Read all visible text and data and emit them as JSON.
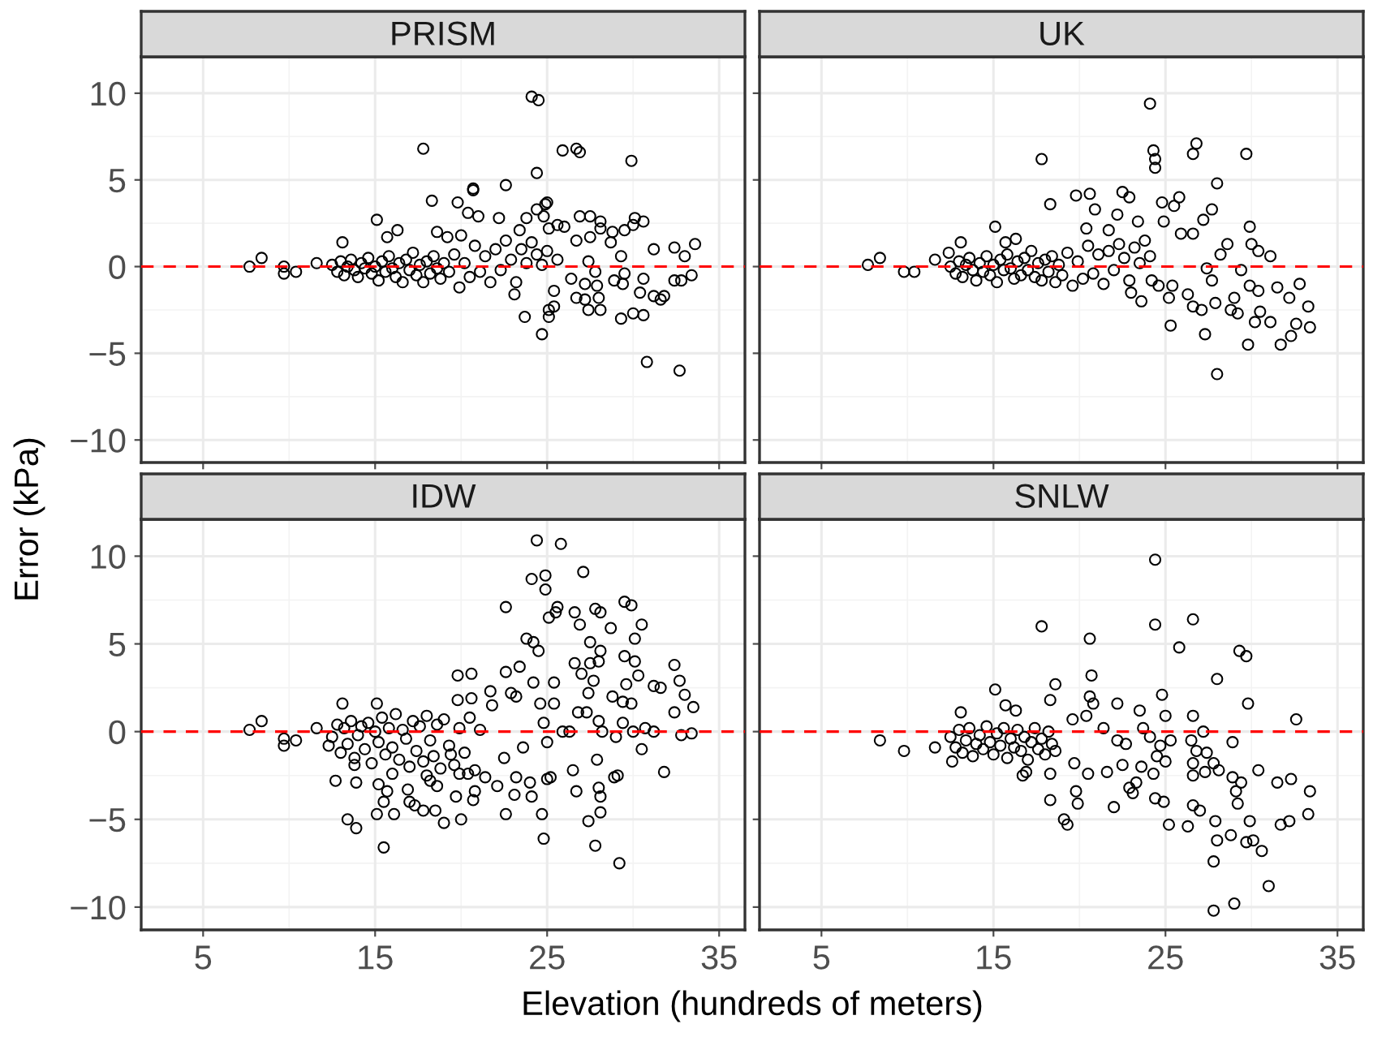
{
  "chart_data": [
    {
      "type": "scatter",
      "title": "PRISM",
      "ylabel": "Error (kPa)",
      "xlim": [
        1.4,
        36.5
      ],
      "ylim": [
        -11.3,
        12.1
      ],
      "xticks": [
        5,
        15,
        25,
        35
      ],
      "yticks": [
        -10,
        -5,
        0,
        5,
        10
      ],
      "grid": true,
      "marker": "circle",
      "tick_labels": "y",
      "ref_lines": [
        {
          "axis": "y",
          "value": 0,
          "color": "#ff0000",
          "line_style": "dashed"
        }
      ],
      "series": [
        {
          "color": "#000000",
          "x": [
            7.7,
            8.4,
            9.7,
            9.7,
            10.4,
            11.6,
            13.1,
            15.1,
            15.7,
            16.3,
            17.8,
            18.3,
            18.6,
            19.2,
            19.8,
            20.0,
            20.4,
            20.7,
            20.7,
            21.0,
            22.2,
            22.6,
            23.4,
            23.7,
            23.8,
            23.1,
            24.1,
            24.5,
            24.4,
            24.4,
            24.8,
            24.9,
            25.0,
            24.7,
            25.1,
            25.1,
            25.4,
            25.4,
            25.1,
            25.6,
            25.6,
            25.9,
            26.0,
            26.4,
            26.7,
            26.9,
            26.7,
            26.7,
            26.9,
            27.2,
            27.2,
            27.4,
            27.5,
            27.5,
            27.4,
            27.8,
            27.9,
            28.0,
            28.1,
            28.1,
            28.1,
            28.7,
            28.8,
            28.9,
            29.3,
            29.3,
            29.5,
            29.4,
            29.5,
            29.9,
            30.0,
            30.1,
            30.0,
            30.4,
            30.6,
            30.6,
            30.6,
            30.8,
            31.2,
            31.2,
            31.6,
            31.8,
            32.4,
            32.4,
            32.7,
            32.8,
            33.0,
            33.4,
            33.6,
            12.5,
            12.8,
            13.0,
            13.2,
            13.4,
            13.6,
            13.8,
            14.0,
            14.2,
            14.4,
            14.6,
            14.8,
            15.0,
            15.2,
            15.4,
            15.6,
            15.8,
            16.0,
            16.2,
            16.4,
            16.6,
            16.8,
            17.0,
            17.2,
            17.4,
            17.6,
            17.8,
            18.0,
            18.2,
            18.4,
            18.6,
            18.8,
            19.0,
            19.3,
            19.6,
            19.9,
            20.2,
            20.5,
            20.8,
            21.1,
            21.4,
            21.7,
            22.0,
            22.3,
            22.6,
            22.9,
            23.2,
            23.5,
            23.8,
            24.1,
            24.4,
            24.7,
            25.0
          ],
          "values": [
            0,
            0.5,
            0,
            -0.4,
            -0.3,
            0.2,
            1.4,
            2.7,
            1.7,
            2.1,
            6.8,
            3.8,
            2.0,
            1.7,
            3.7,
            1.8,
            3.1,
            4.5,
            4.4,
            2.9,
            2.8,
            4.7,
            2.1,
            -2.9,
            2.8,
            -1.6,
            9.8,
            9.6,
            5.4,
            3.3,
            2.9,
            3.6,
            3.7,
            -3.9,
            -2.9,
            -2.5,
            -1.4,
            -2.3,
            2.2,
            0.4,
            2.4,
            6.7,
            2.3,
            -0.7,
            6.8,
            6.6,
            1.5,
            -1.8,
            2.9,
            -1.0,
            -1.9,
            -2.5,
            2.9,
            1.7,
            0.3,
            -0.3,
            -1.1,
            -1.8,
            -2.5,
            2.6,
            2.2,
            1.4,
            2.0,
            -0.8,
            0.6,
            -3.0,
            -0.4,
            -1.0,
            2.1,
            6.1,
            2.4,
            2.8,
            -2.7,
            -1.5,
            2.6,
            -0.7,
            -2.8,
            -5.5,
            1.0,
            -1.7,
            -1.9,
            -1.7,
            1.1,
            -0.8,
            -6.0,
            -0.8,
            0.6,
            -0.5,
            1.3,
            0.1,
            -0.3,
            0.3,
            -0.5,
            0.0,
            0.4,
            -0.2,
            -0.6,
            0.2,
            -0.1,
            0.5,
            -0.4,
            0.0,
            -0.8,
            0.3,
            -0.3,
            0.6,
            -0.1,
            -0.6,
            0.2,
            -0.9,
            0.4,
            -0.2,
            0.8,
            -0.5,
            0.1,
            -0.9,
            0.3,
            -0.4,
            0.6,
            -0.1,
            -0.7,
            0.2,
            -0.3,
            0.7,
            -1.2,
            0.2,
            -0.6,
            1.2,
            -0.3,
            0.6,
            -0.9,
            1.0,
            -0.2,
            1.5,
            0.4,
            -0.9,
            1.0,
            0.2,
            1.4,
            0.7,
            0.1,
            0.9
          ]
        }
      ]
    },
    {
      "type": "scatter",
      "title": "UK",
      "xlim": [
        1.4,
        36.5
      ],
      "ylim": [
        -11.3,
        12.1
      ],
      "xticks": [
        5,
        15,
        25,
        35
      ],
      "yticks": [
        -10,
        -5,
        0,
        5,
        10
      ],
      "grid": true,
      "marker": "circle",
      "tick_labels": false,
      "ref_lines": [
        {
          "axis": "y",
          "value": 0,
          "color": "#ff0000",
          "line_style": "dashed"
        }
      ],
      "series": [
        {
          "color": "#000000",
          "x": [
            7.7,
            8.4,
            9.8,
            10.4,
            11.6,
            12.4,
            13.1,
            15.1,
            15.7,
            16.3,
            17.8,
            18.3,
            19.8,
            20.6,
            20.9,
            20.4,
            21.7,
            22.2,
            22.5,
            22.9,
            23.0,
            23.4,
            23.6,
            24.1,
            24.3,
            24.4,
            24.4,
            24.2,
            24.6,
            24.8,
            24.9,
            25.3,
            25.2,
            25.4,
            25.5,
            25.8,
            25.9,
            26.3,
            26.6,
            26.6,
            26.6,
            26.8,
            27.1,
            27.2,
            27.3,
            27.4,
            27.7,
            27.7,
            27.9,
            28.0,
            28.0,
            28.2,
            28.6,
            28.8,
            29.0,
            29.2,
            29.4,
            29.7,
            29.9,
            29.8,
            29.9,
            30.0,
            30.2,
            30.4,
            30.4,
            30.5,
            31.1,
            31.1,
            31.5,
            31.7,
            32.2,
            32.3,
            32.6,
            32.8,
            33.3,
            33.4,
            12.5,
            12.8,
            13.0,
            13.2,
            13.4,
            13.6,
            13.8,
            14.0,
            14.2,
            14.4,
            14.6,
            14.8,
            15.0,
            15.2,
            15.4,
            15.6,
            15.8,
            16.0,
            16.2,
            16.4,
            16.6,
            16.8,
            17.0,
            17.2,
            17.4,
            17.6,
            17.8,
            18.0,
            18.2,
            18.4,
            18.6,
            18.8,
            19.0,
            19.3,
            19.6,
            19.9,
            20.2,
            20.5,
            20.8,
            21.1,
            21.4,
            21.7,
            22.0,
            22.3,
            22.6,
            22.9,
            23.2,
            23.5,
            23.8,
            24.1
          ],
          "values": [
            0.1,
            0.5,
            -0.3,
            -0.3,
            0.4,
            0.8,
            1.4,
            2.3,
            1.4,
            1.6,
            6.2,
            3.6,
            4.1,
            4.2,
            3.3,
            2.2,
            2.1,
            3.0,
            4.3,
            4.0,
            -1.5,
            2.6,
            -2.0,
            9.4,
            6.7,
            6.2,
            5.7,
            -0.8,
            -1.1,
            3.7,
            2.6,
            -3.4,
            -1.8,
            -1.1,
            3.5,
            4.0,
            1.9,
            -1.6,
            1.9,
            -2.3,
            6.5,
            7.1,
            -2.5,
            2.7,
            -3.9,
            -0.1,
            3.3,
            -0.8,
            -2.1,
            4.8,
            -6.2,
            0.7,
            1.3,
            -2.5,
            -1.8,
            -2.7,
            -0.2,
            6.5,
            2.3,
            -4.5,
            -1.1,
            1.3,
            -3.2,
            0.9,
            -1.4,
            -2.6,
            0.6,
            -3.2,
            -1.2,
            -4.5,
            -1.8,
            -4.0,
            -3.3,
            -1.0,
            -2.3,
            -3.5,
            0.0,
            -0.4,
            0.3,
            -0.6,
            0.1,
            0.5,
            -0.2,
            -0.8,
            0.2,
            -0.3,
            0.6,
            -0.5,
            0.1,
            -0.9,
            0.4,
            -0.2,
            0.7,
            -0.1,
            -0.7,
            0.3,
            -0.5,
            0.5,
            -0.2,
            0.9,
            -0.6,
            0.2,
            -0.8,
            0.4,
            -0.3,
            0.6,
            -0.9,
            0.1,
            -0.5,
            0.8,
            -1.1,
            0.3,
            -0.7,
            1.2,
            -0.4,
            0.7,
            -1.0,
            0.9,
            -0.2,
            1.3,
            0.5,
            -0.8,
            1.1,
            0.2,
            1.5,
            0.6
          ]
        }
      ]
    },
    {
      "type": "scatter",
      "title": "IDW",
      "xlabel": "Elevation (hundreds of meters)",
      "xlim": [
        1.4,
        36.5
      ],
      "ylim": [
        -11.3,
        12.1
      ],
      "xticks": [
        5,
        15,
        25,
        35
      ],
      "yticks": [
        -10,
        -5,
        0,
        5,
        10
      ],
      "grid": true,
      "marker": "circle",
      "ref_lines": [
        {
          "axis": "y",
          "value": 0,
          "color": "#ff0000",
          "line_style": "dashed"
        }
      ],
      "series": [
        {
          "color": "#000000",
          "x": [
            7.7,
            8.4,
            9.7,
            9.7,
            10.4,
            11.6,
            12.3,
            12.7,
            13.1,
            13.4,
            13.9,
            13.9,
            13.8,
            15.1,
            15.1,
            15.2,
            15.5,
            15.5,
            15.7,
            16.0,
            16.1,
            16.9,
            17.0,
            17.3,
            17.8,
            18.0,
            18.2,
            18.5,
            18.6,
            19.0,
            19.4,
            19.7,
            19.8,
            19.8,
            19.9,
            20.0,
            20.4,
            20.6,
            20.6,
            20.7,
            20.8,
            21.4,
            21.7,
            21.8,
            22.1,
            22.6,
            22.6,
            22.6,
            22.5,
            22.9,
            23.1,
            23.2,
            23.4,
            23.2,
            23.6,
            23.8,
            24.0,
            24.1,
            24.1,
            24.2,
            24.2,
            24.4,
            24.5,
            24.6,
            24.7,
            24.8,
            24.9,
            24.9,
            24.8,
            25.0,
            25.1,
            25.0,
            25.2,
            25.4,
            25.4,
            25.5,
            25.6,
            25.8,
            25.9,
            26.3,
            26.5,
            26.6,
            26.6,
            26.7,
            26.8,
            26.9,
            27.0,
            27.1,
            27.3,
            27.4,
            27.4,
            27.5,
            27.5,
            27.7,
            27.8,
            27.8,
            27.9,
            28.0,
            28.0,
            28.0,
            28.1,
            28.1,
            28.1,
            28.1,
            28.2,
            28.7,
            28.8,
            28.9,
            29.0,
            29.1,
            29.2,
            29.4,
            29.4,
            29.5,
            29.5,
            29.6,
            29.9,
            29.9,
            30.0,
            30.1,
            30.1,
            30.3,
            30.5,
            30.5,
            30.7,
            31.2,
            31.2,
            31.6,
            31.8,
            32.4,
            32.4,
            32.7,
            32.8,
            33.0,
            33.4,
            33.5,
            12.5,
            12.8,
            13.0,
            13.2,
            13.4,
            13.6,
            13.8,
            14.0,
            14.2,
            14.4,
            14.6,
            14.8,
            15.0,
            15.2,
            15.4,
            15.6,
            15.8,
            16.0,
            16.2,
            16.4,
            16.6,
            16.8,
            17.0,
            17.2,
            17.4,
            17.6,
            17.8,
            18.0,
            18.2,
            18.4,
            18.6,
            18.8,
            19.0,
            19.3,
            19.6,
            19.9,
            20.2,
            20.5,
            20.8,
            21.1
          ],
          "values": [
            0.1,
            0.6,
            -0.4,
            -0.8,
            -0.5,
            0.2,
            -0.8,
            -2.8,
            1.6,
            -5.0,
            -5.5,
            -2.9,
            -1.9,
            1.6,
            -4.7,
            -3.0,
            -4.0,
            -6.6,
            -3.4,
            -2.4,
            -4.7,
            -3.3,
            -4.0,
            -4.2,
            -4.5,
            -2.5,
            -2.8,
            -4.5,
            -3.1,
            -5.2,
            -1.3,
            -3.7,
            3.2,
            1.8,
            -2.4,
            -5.0,
            -2.4,
            3.3,
            1.9,
            -3.9,
            -3.4,
            -2.6,
            2.3,
            1.5,
            -3.1,
            7.1,
            3.4,
            -4.7,
            -1.5,
            2.2,
            -3.6,
            2.0,
            3.7,
            -2.6,
            -0.9,
            5.3,
            -2.9,
            -3.7,
            8.7,
            2.8,
            5.1,
            10.9,
            4.6,
            1.6,
            -4.7,
            -6.1,
            8.1,
            8.9,
            0.5,
            -0.6,
            6.5,
            -2.7,
            -2.6,
            2.8,
            1.6,
            6.8,
            7.1,
            10.7,
            0,
            0,
            -2.2,
            3.9,
            6.8,
            -3.4,
            1.1,
            6.1,
            3.3,
            9.1,
            1.1,
            -5.1,
            2.2,
            5.1,
            3.9,
            2.9,
            -6.5,
            7.0,
            -1.6,
            0.6,
            4.0,
            -3.2,
            4.6,
            6.8,
            -3.7,
            -4.6,
            0,
            5.9,
            2.0,
            -2.6,
            -0.3,
            -2.5,
            -7.5,
            0.5,
            1.7,
            4.3,
            7.4,
            2.7,
            7.2,
            1.6,
            0,
            4.0,
            5.3,
            3.2,
            6.1,
            -1.0,
            0.2,
            2.6,
            0,
            2.5,
            -2.3,
            1.1,
            3.8,
            2.9,
            -0.2,
            2.1,
            -0.1,
            1.4,
            -0.3,
            0.4,
            -1.2,
            0.2,
            -0.7,
            0.6,
            -1.5,
            -0.2,
            0.3,
            -1.0,
            0.5,
            -1.8,
            0.0,
            -0.6,
            0.8,
            -1.3,
            0.2,
            -0.9,
            1.0,
            -1.6,
            0.1,
            -0.4,
            -2.0,
            0.6,
            -1.1,
            0.3,
            -1.7,
            0.9,
            -0.5,
            -1.4,
            0.4,
            -2.1,
            0.7,
            -0.8,
            -1.9,
            0.2,
            -1.2,
            0.8,
            -2.2,
            0.1
          ]
        }
      ]
    },
    {
      "type": "scatter",
      "title": "SNLW",
      "xlim": [
        1.4,
        36.5
      ],
      "ylim": [
        -11.3,
        12.1
      ],
      "xticks": [
        5,
        15,
        25,
        35
      ],
      "yticks": [
        -10,
        -5,
        0,
        5,
        10
      ],
      "grid": true,
      "marker": "circle",
      "tick_labels": "x",
      "ref_lines": [
        {
          "axis": "y",
          "value": 0,
          "color": "#ff0000",
          "line_style": "dashed"
        }
      ],
      "series": [
        {
          "color": "#000000",
          "x": [
            8.4,
            9.8,
            11.6,
            12.6,
            13.1,
            15.1,
            15.7,
            16.3,
            16.7,
            16.9,
            17.8,
            18.3,
            18.3,
            18.3,
            18.6,
            19.1,
            19.3,
            19.6,
            19.8,
            19.9,
            19.7,
            20.5,
            20.6,
            20.6,
            20.7,
            20.8,
            20.4,
            21.4,
            21.6,
            22.0,
            22.2,
            22.2,
            22.5,
            22.7,
            22.9,
            23.1,
            23.3,
            23.5,
            23.7,
            23.6,
            24.1,
            24.3,
            24.4,
            24.4,
            24.4,
            24.5,
            24.7,
            24.8,
            24.9,
            25.0,
            25.0,
            25.2,
            25.3,
            25.8,
            26.3,
            26.5,
            26.6,
            26.6,
            26.6,
            26.6,
            26.6,
            26.8,
            27.0,
            27.2,
            27.3,
            27.4,
            27.8,
            27.8,
            27.9,
            28.0,
            28.0,
            28.1,
            28.8,
            28.9,
            28.9,
            29.0,
            29.1,
            29.2,
            29.3,
            29.4,
            29.7,
            29.8,
            29.7,
            29.9,
            30.1,
            30.4,
            30.6,
            31.0,
            31.5,
            31.7,
            32.2,
            32.3,
            32.6,
            33.3,
            33.4,
            27.8,
            12.5,
            12.8,
            13.0,
            13.2,
            13.4,
            13.6,
            13.8,
            14.0,
            14.2,
            14.4,
            14.6,
            14.8,
            15.0,
            15.2,
            15.4,
            15.6,
            15.8,
            16.0,
            16.2,
            16.4,
            16.6,
            16.8,
            17.0,
            17.2,
            17.4,
            17.6,
            17.8,
            18.0,
            18.2,
            18.4,
            18.6
          ],
          "values": [
            -0.5,
            -1.1,
            -0.9,
            -1.7,
            1.1,
            2.4,
            1.5,
            1.2,
            -2.5,
            -2.3,
            6.0,
            -3.9,
            1.8,
            -2.4,
            2.7,
            -5.0,
            -5.3,
            0.7,
            -3.4,
            -4.1,
            -1.8,
            -2.4,
            2.0,
            5.3,
            3.2,
            1.6,
            0.9,
            0.2,
            -2.3,
            -4.3,
            1.6,
            -0.5,
            -1.9,
            -0.7,
            -3.2,
            -3.5,
            -2.9,
            1.2,
            0.2,
            -2.0,
            -0.3,
            -2.4,
            9.8,
            6.1,
            -3.8,
            -1.4,
            -0.8,
            2.1,
            -4.0,
            0.9,
            -1.7,
            -5.3,
            -0.5,
            4.8,
            -5.4,
            -0.5,
            6.4,
            0.9,
            -1.8,
            -2.5,
            -4.2,
            -1.1,
            -4.5,
            0,
            -2.3,
            -1.2,
            -1.8,
            -7.4,
            -5.1,
            3.0,
            -6.2,
            -2.2,
            -5.9,
            -0.6,
            -2.6,
            -9.8,
            -3.4,
            -4.1,
            4.6,
            -2.9,
            4.3,
            1.6,
            -6.3,
            -5.1,
            -6.2,
            -2.2,
            -6.8,
            -8.8,
            -2.9,
            -5.3,
            -5.1,
            -2.7,
            0.7,
            -4.7,
            -3.4,
            -10.2,
            -0.3,
            -0.9,
            0.1,
            -1.2,
            -0.5,
            0.2,
            -1.4,
            -0.7,
            -0.2,
            -1.0,
            0.3,
            -0.6,
            -1.3,
            -0.1,
            -0.8,
            0.2,
            -1.5,
            -0.4,
            -0.9,
            0.1,
            -1.1,
            -0.3,
            -1.6,
            -0.6,
            0.2,
            -1.0,
            -0.4,
            -1.3,
            0.0,
            -0.7,
            -1.1
          ]
        }
      ]
    }
  ]
}
